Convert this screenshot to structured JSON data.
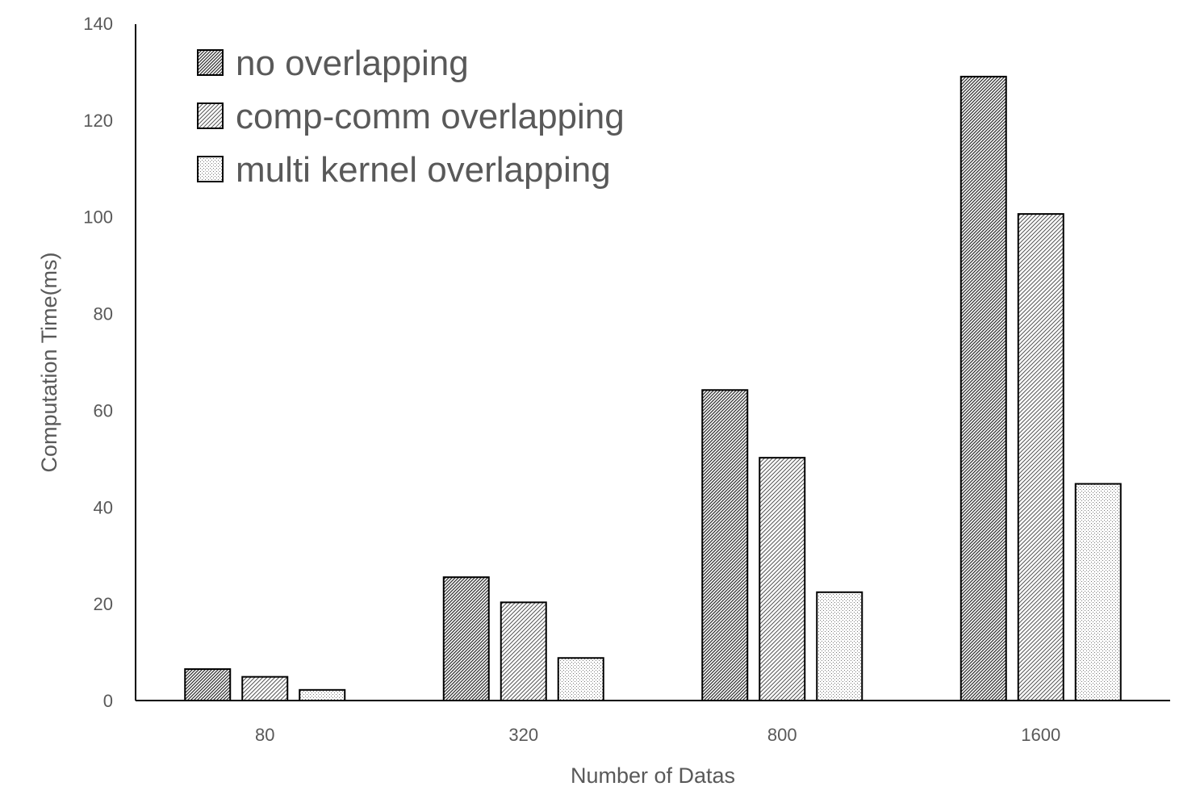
{
  "chart_data": {
    "type": "bar",
    "xlabel": "Number of Datas",
    "ylabel": "Computation Time(ms)",
    "categories": [
      "80",
      "320",
      "800",
      "1600"
    ],
    "ylim": [
      0,
      140
    ],
    "yticks": [
      0,
      20,
      40,
      60,
      80,
      100,
      120,
      140
    ],
    "grid": false,
    "legend_position": "top-left",
    "series": [
      {
        "name": "no overlapping",
        "values": [
          6.5,
          25.5,
          64.2,
          129
        ],
        "pattern": "dense-diagonal-hatch"
      },
      {
        "name": "comp-comm overlapping",
        "values": [
          4.9,
          20.3,
          50.2,
          100.6
        ],
        "pattern": "diagonal-hatch"
      },
      {
        "name": "multi kernel overlapping",
        "values": [
          2.2,
          8.8,
          22.4,
          44.8
        ],
        "pattern": "dots"
      }
    ],
    "colors": {
      "axis": "#000000",
      "text": "#595959",
      "bar_outline": "#000000",
      "bar_fill": "#ffffff"
    }
  }
}
